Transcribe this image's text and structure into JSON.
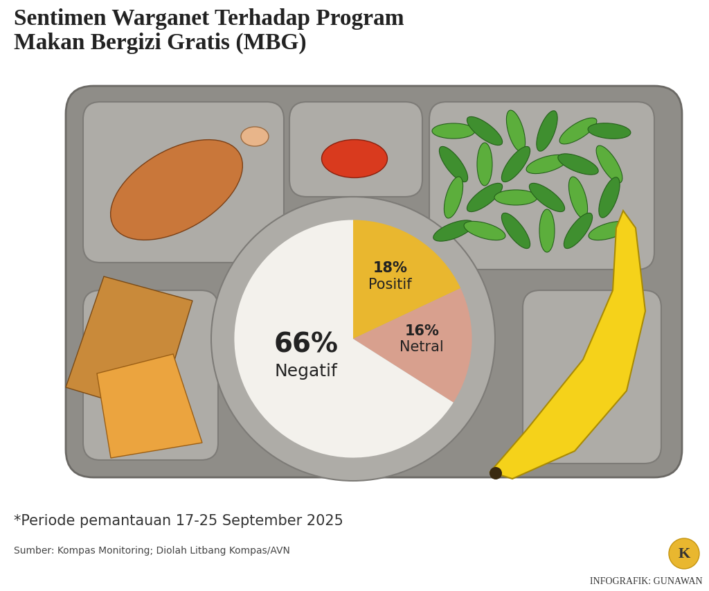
{
  "chart_data": {
    "type": "pie",
    "title": "Sentimen Warganet Terhadap Program Makan Bergizi Gratis (MBG)",
    "categories": [
      "Positif",
      "Netral",
      "Negatif"
    ],
    "values": [
      18,
      16,
      66
    ],
    "value_labels": [
      "18%",
      "16%",
      "66%"
    ],
    "colors": [
      "#e9b72f",
      "#d8a08e",
      "#f3f1ec"
    ],
    "data_labels": true,
    "note": "*Periode pemantauan 17-25 September 2025",
    "source": "Sumber: Kompas Monitoring; Diolah Litbang Kompas/AVN",
    "credit": "INFOGRAFIK: GUNAWAN",
    "logo_text": "K"
  }
}
